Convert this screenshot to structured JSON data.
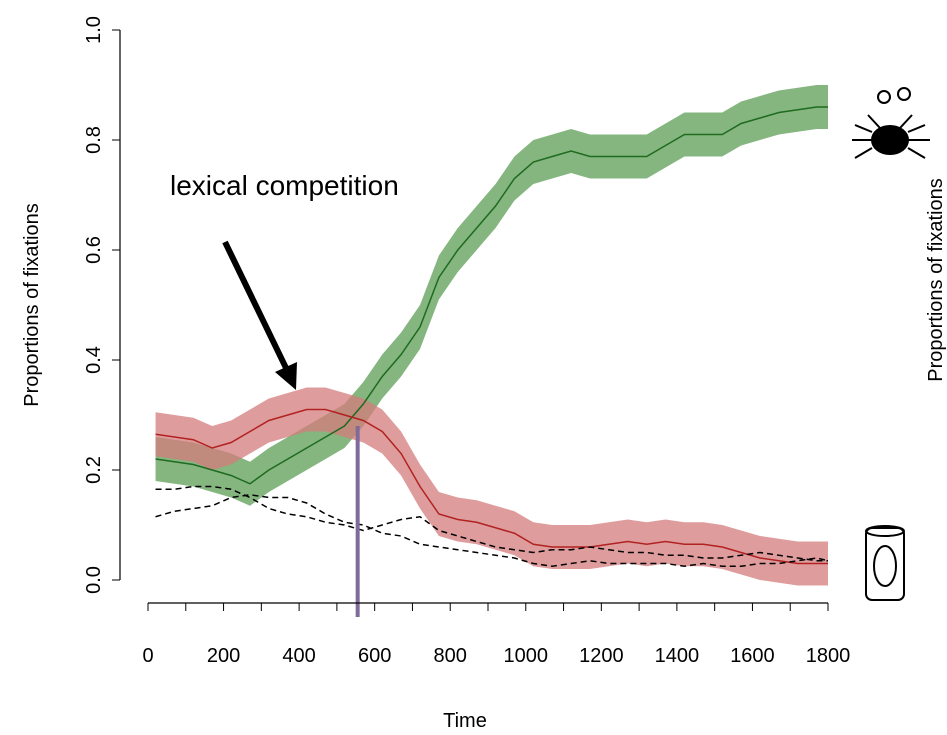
{
  "chart_data": {
    "type": "line",
    "xlabel": "Time",
    "ylabel": "Proportions of fixations",
    "y2label": "Proportions of fixations",
    "annotation": "lexical competition",
    "x": [
      20,
      70,
      120,
      170,
      220,
      270,
      320,
      370,
      420,
      470,
      520,
      570,
      620,
      670,
      720,
      770,
      820,
      870,
      920,
      970,
      1020,
      1070,
      1120,
      1170,
      1220,
      1270,
      1320,
      1370,
      1420,
      1470,
      1520,
      1570,
      1620,
      1670,
      1720,
      1770,
      1800
    ],
    "series": [
      {
        "color": "#1f6b1f",
        "band_color": "#5c9e55",
        "dash": false,
        "ci": 0.04,
        "values": [
          0.22,
          0.215,
          0.21,
          0.2,
          0.19,
          0.175,
          0.2,
          0.22,
          0.24,
          0.26,
          0.28,
          0.32,
          0.37,
          0.41,
          0.46,
          0.55,
          0.6,
          0.64,
          0.68,
          0.73,
          0.76,
          0.77,
          0.78,
          0.77,
          0.77,
          0.77,
          0.77,
          0.79,
          0.81,
          0.81,
          0.81,
          0.83,
          0.84,
          0.85,
          0.855,
          0.86,
          0.86
        ]
      },
      {
        "color": "#b22222",
        "band_color": "#d47b7b",
        "dash": false,
        "ci": 0.04,
        "values": [
          0.265,
          0.26,
          0.255,
          0.24,
          0.25,
          0.27,
          0.29,
          0.3,
          0.31,
          0.31,
          0.3,
          0.29,
          0.27,
          0.23,
          0.17,
          0.12,
          0.11,
          0.105,
          0.095,
          0.085,
          0.065,
          0.06,
          0.06,
          0.06,
          0.065,
          0.07,
          0.065,
          0.07,
          0.065,
          0.065,
          0.06,
          0.05,
          0.04,
          0.035,
          0.03,
          0.03,
          0.03
        ]
      },
      {
        "color": "#000000",
        "dash": true,
        "values": [
          0.165,
          0.165,
          0.17,
          0.17,
          0.165,
          0.15,
          0.13,
          0.12,
          0.115,
          0.105,
          0.1,
          0.09,
          0.1,
          0.11,
          0.115,
          0.09,
          0.08,
          0.07,
          0.06,
          0.055,
          0.05,
          0.055,
          0.055,
          0.06,
          0.055,
          0.05,
          0.05,
          0.045,
          0.045,
          0.04,
          0.04,
          0.045,
          0.05,
          0.045,
          0.04,
          0.035,
          0.035
        ]
      },
      {
        "color": "#000000",
        "dash": true,
        "values": [
          0.115,
          0.125,
          0.13,
          0.135,
          0.15,
          0.155,
          0.15,
          0.15,
          0.14,
          0.12,
          0.105,
          0.1,
          0.085,
          0.08,
          0.065,
          0.06,
          0.055,
          0.05,
          0.045,
          0.04,
          0.03,
          0.025,
          0.03,
          0.035,
          0.03,
          0.03,
          0.03,
          0.03,
          0.025,
          0.03,
          0.025,
          0.025,
          0.03,
          0.03,
          0.035,
          0.04,
          0.035
        ]
      }
    ],
    "vline": {
      "x": 555,
      "y": 0.28,
      "color": "#7f6a9a"
    },
    "xlim": [
      0,
      1800
    ],
    "xticks": [
      0,
      200,
      400,
      600,
      800,
      1000,
      1200,
      1400,
      1600,
      1800
    ],
    "xminorticks": [
      100,
      300,
      500,
      700,
      900,
      1100,
      1300,
      1500,
      1700
    ],
    "ylim": [
      0,
      1
    ],
    "yticks": [
      {
        "value": 0,
        "label": "0.0"
      },
      0.2,
      0.4,
      0.6,
      0.8,
      {
        "value": 1,
        "label": "1.0"
      }
    ]
  }
}
